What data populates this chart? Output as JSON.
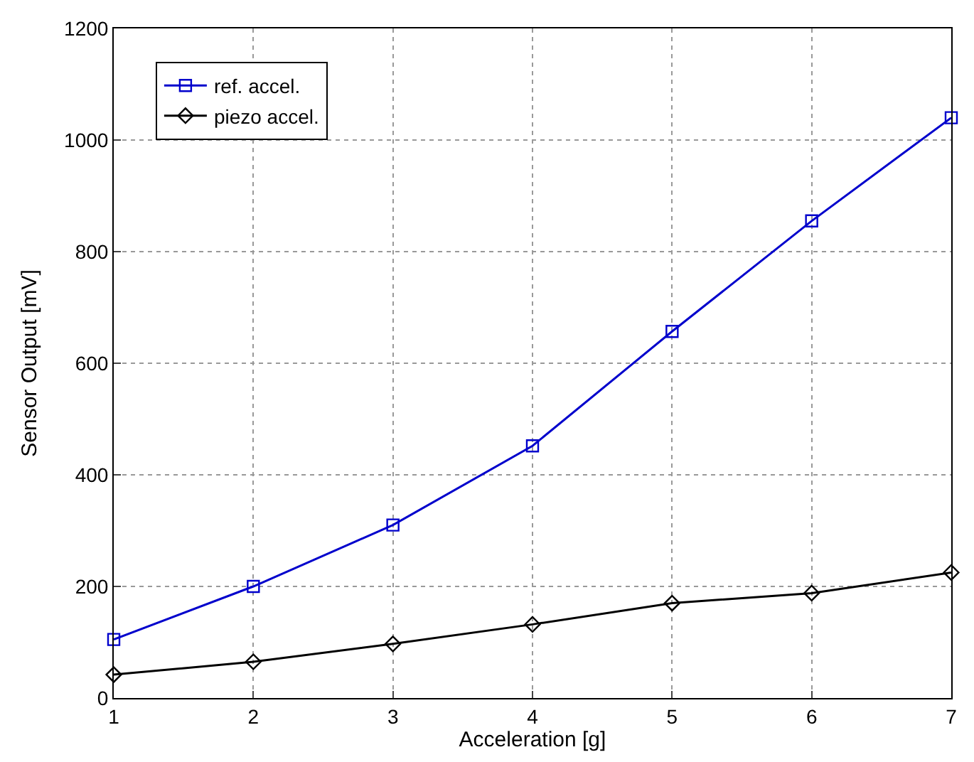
{
  "chart_data": {
    "type": "line",
    "xlabel": "Acceleration [g]",
    "ylabel": "Sensor Output [mV]",
    "x": [
      1,
      2,
      3,
      4,
      5,
      6,
      7
    ],
    "series": [
      {
        "name": "ref. accel.",
        "color": "#0000cc",
        "marker": "square",
        "values": [
          105,
          200,
          310,
          452,
          657,
          855,
          1040
        ]
      },
      {
        "name": "piezo accel.",
        "color": "#000000",
        "marker": "diamond",
        "values": [
          42,
          65,
          97,
          132,
          170,
          188,
          225
        ]
      }
    ],
    "xlim": [
      1,
      7
    ],
    "xticks": [
      1,
      2,
      3,
      4,
      5,
      6,
      7
    ],
    "ylim": [
      0,
      1200
    ],
    "yticks": [
      0,
      200,
      400,
      600,
      800,
      1000,
      1200
    ],
    "grid": true,
    "legend": "top left",
    "line_style": "solid"
  }
}
